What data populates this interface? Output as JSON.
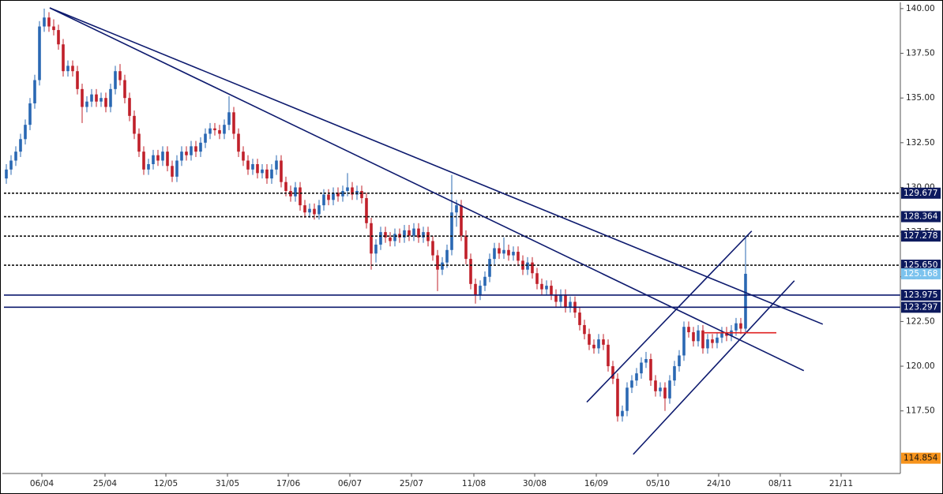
{
  "chart_data": {
    "type": "candlestick",
    "up_color": "#2a68b3",
    "down_color": "#c0202a",
    "xlim": [
      0.5,
      189.67
    ],
    "ylim": [
      114,
      140.26
    ],
    "xticks": [
      {
        "value": 8.5,
        "label": "06/04"
      },
      {
        "value": 21.83,
        "label": "25/04"
      },
      {
        "value": 34.67,
        "label": "12/05"
      },
      {
        "value": 47.67,
        "label": "31/05"
      },
      {
        "value": 60.5,
        "label": "17/06"
      },
      {
        "value": 73.5,
        "label": "06/07"
      },
      {
        "value": 86.5,
        "label": "25/07"
      },
      {
        "value": 99.67,
        "label": "11/08"
      },
      {
        "value": 112.5,
        "label": "30/08"
      },
      {
        "value": 125.5,
        "label": "16/09"
      },
      {
        "value": 138.5,
        "label": "05/10"
      },
      {
        "value": 151.33,
        "label": "24/10"
      },
      {
        "value": 164.33,
        "label": "08/11"
      },
      {
        "value": 177.17,
        "label": "21/11"
      }
    ],
    "yticks": [
      {
        "value": 117.5,
        "label": "117.50"
      },
      {
        "value": 120,
        "label": "120.00"
      },
      {
        "value": 122.5,
        "label": "122.50"
      },
      {
        "value": 125,
        "label": "125.00"
      },
      {
        "value": 127.5,
        "label": "127.50"
      },
      {
        "value": 130,
        "label": "130.00"
      },
      {
        "value": 132.5,
        "label": "132.50"
      },
      {
        "value": 135,
        "label": "135.00"
      },
      {
        "value": 137.5,
        "label": "137.50"
      },
      {
        "value": 140,
        "label": "140.00"
      }
    ],
    "ohlc": [
      [
        130.2,
        130.9,
        129.9,
        130.5
      ],
      [
        130.5,
        131.3,
        130.2,
        131.0
      ],
      [
        131.0,
        131.8,
        130.7,
        131.5
      ],
      [
        131.5,
        132.3,
        131.2,
        132.0
      ],
      [
        132.0,
        133.0,
        131.7,
        132.7
      ],
      [
        132.7,
        133.8,
        132.4,
        133.5
      ],
      [
        133.5,
        135.0,
        133.2,
        134.7
      ],
      [
        134.7,
        136.3,
        134.4,
        136.0
      ],
      [
        136.0,
        139.3,
        135.7,
        139.0
      ],
      [
        139.0,
        140.0,
        138.7,
        139.5
      ],
      [
        139.5,
        139.8,
        138.7,
        139.0
      ],
      [
        139.0,
        139.4,
        138.5,
        138.8
      ],
      [
        138.8,
        139.1,
        137.7,
        138.0
      ],
      [
        138.0,
        138.3,
        136.2,
        136.5
      ],
      [
        136.5,
        137.1,
        136.2,
        136.8
      ],
      [
        136.8,
        137.1,
        136.2,
        136.5
      ],
      [
        136.5,
        136.8,
        135.2,
        135.5
      ],
      [
        135.5,
        135.8,
        133.6,
        134.5
      ],
      [
        134.5,
        135.1,
        134.2,
        134.8
      ],
      [
        134.8,
        135.5,
        134.5,
        135.2
      ],
      [
        135.2,
        135.5,
        134.5,
        134.8
      ],
      [
        134.8,
        135.3,
        134.5,
        135.0
      ],
      [
        135.0,
        135.3,
        134.2,
        134.5
      ],
      [
        134.5,
        135.8,
        134.2,
        135.5
      ],
      [
        135.5,
        136.8,
        135.2,
        136.5
      ],
      [
        136.5,
        136.9,
        135.7,
        136.0
      ],
      [
        136.0,
        136.3,
        134.7,
        135.0
      ],
      [
        135.0,
        135.3,
        133.7,
        134.0
      ],
      [
        134.0,
        134.3,
        132.7,
        133.0
      ],
      [
        133.0,
        133.3,
        131.7,
        132.0
      ],
      [
        132.0,
        132.3,
        130.7,
        131.0
      ],
      [
        131.0,
        131.6,
        130.7,
        131.3
      ],
      [
        131.3,
        132.1,
        131.0,
        131.8
      ],
      [
        131.8,
        132.1,
        131.2,
        131.5
      ],
      [
        131.5,
        132.3,
        131.2,
        132.0
      ],
      [
        132.0,
        132.3,
        130.9,
        131.2
      ],
      [
        131.2,
        131.5,
        130.3,
        130.6
      ],
      [
        130.6,
        131.8,
        130.3,
        131.5
      ],
      [
        131.5,
        132.3,
        131.2,
        132.0
      ],
      [
        132.0,
        132.3,
        131.5,
        131.8
      ],
      [
        131.8,
        132.6,
        131.5,
        132.3
      ],
      [
        132.3,
        132.6,
        131.7,
        132.0
      ],
      [
        132.0,
        132.8,
        131.7,
        132.5
      ],
      [
        132.5,
        133.3,
        132.2,
        133.0
      ],
      [
        133.0,
        133.6,
        132.7,
        133.3
      ],
      [
        133.3,
        133.6,
        132.9,
        133.2
      ],
      [
        133.2,
        133.5,
        132.7,
        133.0
      ],
      [
        133.0,
        133.8,
        132.7,
        133.5
      ],
      [
        133.5,
        135.1,
        133.2,
        134.2
      ],
      [
        134.2,
        134.5,
        132.7,
        133.0
      ],
      [
        133.0,
        133.3,
        131.7,
        132.0
      ],
      [
        132.0,
        132.3,
        131.2,
        131.5
      ],
      [
        131.5,
        131.8,
        130.7,
        131.0
      ],
      [
        131.0,
        131.6,
        130.7,
        131.3
      ],
      [
        131.3,
        131.6,
        130.5,
        130.8
      ],
      [
        130.8,
        131.3,
        130.5,
        131.0
      ],
      [
        131.0,
        131.3,
        130.2,
        130.5
      ],
      [
        130.5,
        131.3,
        130.2,
        131.0
      ],
      [
        131.0,
        131.8,
        130.7,
        131.5
      ],
      [
        131.5,
        131.8,
        130.0,
        130.3
      ],
      [
        130.3,
        130.6,
        129.5,
        129.8
      ],
      [
        129.8,
        130.1,
        129.2,
        129.5
      ],
      [
        129.5,
        130.3,
        129.2,
        130.0
      ],
      [
        130.0,
        130.3,
        128.7,
        129.0
      ],
      [
        129.0,
        129.3,
        128.3,
        128.6
      ],
      [
        128.6,
        129.1,
        128.3,
        128.8
      ],
      [
        128.8,
        129.1,
        128.2,
        128.5
      ],
      [
        128.5,
        129.3,
        128.2,
        129.0
      ],
      [
        129.0,
        129.9,
        128.7,
        129.6
      ],
      [
        129.6,
        129.9,
        129.0,
        129.3
      ],
      [
        129.3,
        130.0,
        129.0,
        129.7
      ],
      [
        129.7,
        130.0,
        129.2,
        129.5
      ],
      [
        129.5,
        130.1,
        129.2,
        129.8
      ],
      [
        129.8,
        130.8,
        129.5,
        130.0
      ],
      [
        130.0,
        130.3,
        129.3,
        129.6
      ],
      [
        129.6,
        130.1,
        129.3,
        129.8
      ],
      [
        129.8,
        130.1,
        129.1,
        129.4
      ],
      [
        129.4,
        129.7,
        127.7,
        128.0
      ],
      [
        128.0,
        128.3,
        125.4,
        126.3
      ],
      [
        126.3,
        127.1,
        125.8,
        126.8
      ],
      [
        126.8,
        127.8,
        126.5,
        127.5
      ],
      [
        127.5,
        127.8,
        126.9,
        127.2
      ],
      [
        127.2,
        127.5,
        126.7,
        127.0
      ],
      [
        127.0,
        127.7,
        126.7,
        127.4
      ],
      [
        127.4,
        127.7,
        126.9,
        127.2
      ],
      [
        127.2,
        127.9,
        126.9,
        127.6
      ],
      [
        127.6,
        127.9,
        127.0,
        127.3
      ],
      [
        127.3,
        128.0,
        127.0,
        127.7
      ],
      [
        127.7,
        128.0,
        126.9,
        127.2
      ],
      [
        127.2,
        127.8,
        126.9,
        127.5
      ],
      [
        127.5,
        127.8,
        126.7,
        127.0
      ],
      [
        127.0,
        127.3,
        125.9,
        126.2
      ],
      [
        126.2,
        126.5,
        124.2,
        125.4
      ],
      [
        125.4,
        126.1,
        125.1,
        125.8
      ],
      [
        125.8,
        126.8,
        125.5,
        126.5
      ],
      [
        126.5,
        130.7,
        126.2,
        128.6
      ],
      [
        128.6,
        129.3,
        127.8,
        129.0
      ],
      [
        129.0,
        129.3,
        127.0,
        127.3
      ],
      [
        127.3,
        127.6,
        125.7,
        126.0
      ],
      [
        126.0,
        126.3,
        124.3,
        124.6
      ],
      [
        124.6,
        124.9,
        123.5,
        124.0
      ],
      [
        124.0,
        124.8,
        123.7,
        124.5
      ],
      [
        124.5,
        125.3,
        124.2,
        125.0
      ],
      [
        125.0,
        126.3,
        124.7,
        126.0
      ],
      [
        126.0,
        126.9,
        125.7,
        126.6
      ],
      [
        126.6,
        126.9,
        126.0,
        126.3
      ],
      [
        126.3,
        127.2,
        126.0,
        126.5
      ],
      [
        126.5,
        126.8,
        125.9,
        126.2
      ],
      [
        126.2,
        126.7,
        125.9,
        126.4
      ],
      [
        126.4,
        126.7,
        125.6,
        125.9
      ],
      [
        125.9,
        126.2,
        125.1,
        125.4
      ],
      [
        125.4,
        126.1,
        125.1,
        125.8
      ],
      [
        125.8,
        126.1,
        124.9,
        125.2
      ],
      [
        125.2,
        125.5,
        124.3,
        124.6
      ],
      [
        124.6,
        124.9,
        124.0,
        124.3
      ],
      [
        124.3,
        124.8,
        124.0,
        124.5
      ],
      [
        124.5,
        124.8,
        123.7,
        124.0
      ],
      [
        124.0,
        124.3,
        123.3,
        123.6
      ],
      [
        123.6,
        124.3,
        123.3,
        124.0
      ],
      [
        124.0,
        124.3,
        123.0,
        123.3
      ],
      [
        123.3,
        123.9,
        123.0,
        123.6
      ],
      [
        123.6,
        123.9,
        122.7,
        123.0
      ],
      [
        123.0,
        123.3,
        122.0,
        122.3
      ],
      [
        122.3,
        122.6,
        121.5,
        121.8
      ],
      [
        121.8,
        122.1,
        120.9,
        121.2
      ],
      [
        121.2,
        121.5,
        120.7,
        121.0
      ],
      [
        121.0,
        121.8,
        120.7,
        121.5
      ],
      [
        121.5,
        121.8,
        120.9,
        121.2
      ],
      [
        121.2,
        121.5,
        119.7,
        120.0
      ],
      [
        120.0,
        120.3,
        119.0,
        119.3
      ],
      [
        119.3,
        119.6,
        116.9,
        117.2
      ],
      [
        117.2,
        117.8,
        116.9,
        117.5
      ],
      [
        117.5,
        119.1,
        117.2,
        118.8
      ],
      [
        118.8,
        119.5,
        118.5,
        119.2
      ],
      [
        119.2,
        119.9,
        118.9,
        119.6
      ],
      [
        119.6,
        120.5,
        119.3,
        120.2
      ],
      [
        120.2,
        120.8,
        119.9,
        120.4
      ],
      [
        120.4,
        120.7,
        118.9,
        119.2
      ],
      [
        119.2,
        119.5,
        118.3,
        118.6
      ],
      [
        118.6,
        119.1,
        118.3,
        118.8
      ],
      [
        118.8,
        119.1,
        117.5,
        118.2
      ],
      [
        118.2,
        119.5,
        117.9,
        119.2
      ],
      [
        119.2,
        120.3,
        118.9,
        120.0
      ],
      [
        120.0,
        120.9,
        119.7,
        120.6
      ],
      [
        120.6,
        122.5,
        120.3,
        122.2
      ],
      [
        122.2,
        122.5,
        121.6,
        121.9
      ],
      [
        121.9,
        122.2,
        121.1,
        121.4
      ],
      [
        121.4,
        122.3,
        121.1,
        122.0
      ],
      [
        122.0,
        122.3,
        120.7,
        121.0
      ],
      [
        121.0,
        121.8,
        120.7,
        121.5
      ],
      [
        121.5,
        121.8,
        121.0,
        121.3
      ],
      [
        121.3,
        121.9,
        121.0,
        121.6
      ],
      [
        121.6,
        122.2,
        121.3,
        121.9
      ],
      [
        121.9,
        122.2,
        121.4,
        121.7
      ],
      [
        121.7,
        122.3,
        121.4,
        122.0
      ],
      [
        122.0,
        122.7,
        121.7,
        122.4
      ],
      [
        122.4,
        122.7,
        121.8,
        122.1
      ],
      [
        122.1,
        127.3,
        121.9,
        125.168
      ]
    ],
    "levels": [
      {
        "value": 129.677,
        "style": "dotted",
        "color": "#111111",
        "box": "#0d1a5e"
      },
      {
        "value": 128.364,
        "style": "dotted",
        "color": "#111111",
        "box": "#0d1a5e"
      },
      {
        "value": 127.278,
        "style": "dotted",
        "color": "#111111",
        "box": "#0d1a5e"
      },
      {
        "value": 125.65,
        "label": "125.650",
        "style": "dotted",
        "color": "#111111",
        "box": "#0d1a5e"
      },
      {
        "value": 123.975,
        "style": "solid",
        "color": "#0d1a6e",
        "box": "#0d1a5e"
      },
      {
        "value": 123.297,
        "style": "solid",
        "color": "#0d1a6e",
        "box": "#0d1a5e"
      }
    ],
    "price_markers": [
      {
        "value": 125.168,
        "box": "#7cc3ee"
      },
      {
        "value": 114.854,
        "box": "#f7941d"
      }
    ],
    "lines": [
      {
        "points": [
          10.17,
          140.04,
          173.3,
          122.35
        ],
        "color": "#0d1a6e"
      },
      {
        "points": [
          10.17,
          140.04,
          169.3,
          119.75
        ],
        "color": "#0d1a6e"
      },
      {
        "points": [
          123.5,
          117.99,
          158.3,
          127.56
        ],
        "color": "#0d1a6e"
      },
      {
        "points": [
          133.3,
          115.07,
          167.3,
          124.78
        ],
        "color": "#0d1a6e"
      },
      {
        "points": [
          148.3,
          121.87,
          163.5,
          121.87
        ],
        "color": "#e02020"
      }
    ]
  }
}
